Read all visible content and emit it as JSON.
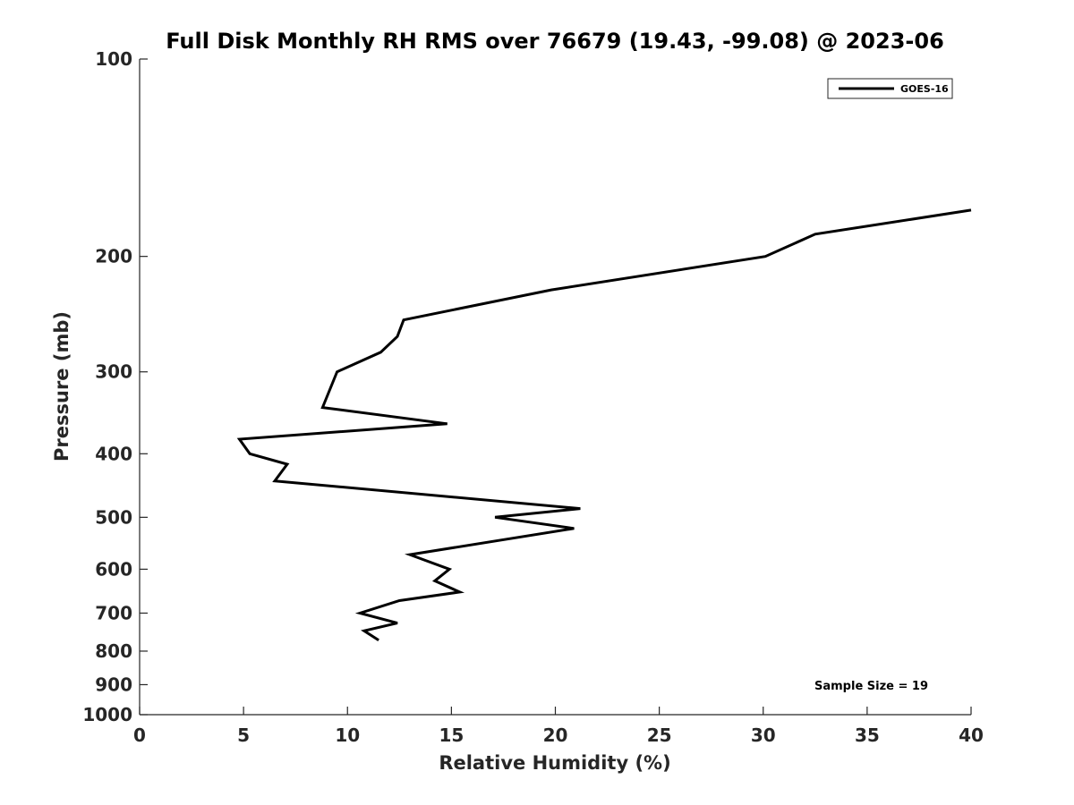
{
  "chart_data": {
    "type": "line",
    "title": "Full Disk Monthly RH RMS over 76679 (19.43, -99.08) @ 2023-06",
    "xlabel": "Relative Humidity (%)",
    "ylabel": "Pressure (mb)",
    "xlim": [
      0,
      40
    ],
    "ylim": [
      100,
      1000
    ],
    "y_scale": "log",
    "y_reversed": true,
    "x_ticks": [
      "0",
      "5",
      "10",
      "15",
      "20",
      "25",
      "30",
      "35",
      "40"
    ],
    "y_ticks": [
      "100",
      "200",
      "300",
      "400",
      "500",
      "600",
      "700",
      "800",
      "900",
      "1000"
    ],
    "grid": false,
    "legend": {
      "placement": "top-right",
      "entries": [
        "GOES-16"
      ]
    },
    "annotation": "Sample Size = 19",
    "colors": {
      "line": "#000000",
      "axis": "#262626"
    },
    "series": [
      {
        "name": "GOES-16",
        "x": [
          40.0,
          32.5,
          30.1,
          19.8,
          12.7,
          12.4,
          11.6,
          9.5,
          8.8,
          14.8,
          4.8,
          5.3,
          7.1,
          6.5,
          21.2,
          17.1,
          20.9,
          13.0,
          14.9,
          14.2,
          15.4,
          12.5,
          10.6,
          12.4,
          10.8,
          11.5
        ],
        "y": [
          170,
          185,
          200,
          225,
          250,
          265,
          280,
          300,
          340,
          360,
          380,
          400,
          415,
          440,
          485,
          500,
          520,
          570,
          600,
          625,
          650,
          670,
          700,
          725,
          745,
          770
        ]
      }
    ]
  }
}
